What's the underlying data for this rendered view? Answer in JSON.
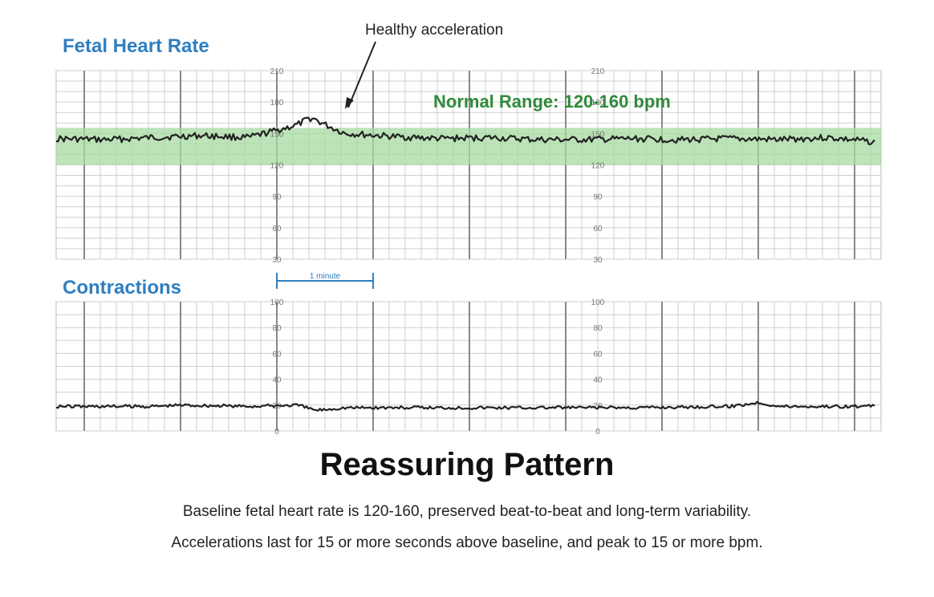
{
  "labels": {
    "fhr": "Fetal Heart Rate",
    "contractions": "Contractions",
    "annotation": "Healthy acceleration",
    "normal_range": "Normal Range: 120-160 bpm",
    "scale_bar": "1 minute"
  },
  "title": "Reassuring Pattern",
  "caption": [
    "Baseline fetal heart rate is 120-160, preserved beat-to-beat and long-term variability.",
    "Accelerations last for 15 or more seconds above baseline, and peak to 15 or more bpm."
  ],
  "colors": {
    "label_blue": "#2f7fc0",
    "band_green": "#a7d9a0",
    "range_text": "#2f8a3a",
    "trace": "#222222",
    "grid": "#c8c8c8"
  },
  "chart_data": [
    {
      "type": "line",
      "title": "Fetal Heart Rate",
      "y_unit": "bpm",
      "ylim": [
        30,
        210
      ],
      "y_ticks": [
        210,
        180,
        150,
        120,
        90,
        60,
        30
      ],
      "normal_band": [
        120,
        160
      ],
      "x_unit": "minutes",
      "x": [
        0,
        0.5,
        1,
        1.5,
        2,
        2.25,
        2.5,
        2.65,
        2.8,
        3,
        3.5,
        4,
        4.5,
        5,
        5.5,
        6,
        6.5,
        7,
        7.5,
        8,
        8.5
      ],
      "values": [
        145,
        144,
        146,
        148,
        146,
        152,
        158,
        165,
        158,
        150,
        147,
        145,
        146,
        144,
        144,
        145,
        144,
        145,
        144,
        146,
        142
      ],
      "annotation": {
        "text": "Healthy acceleration",
        "x": 2.65,
        "y": 165
      }
    },
    {
      "type": "line",
      "title": "Contractions",
      "y_unit": "mmHg",
      "ylim": [
        0,
        100
      ],
      "y_ticks": [
        100,
        80,
        60,
        40,
        20,
        0
      ],
      "x_unit": "minutes",
      "x": [
        0,
        1,
        1.3,
        2,
        2.5,
        2.7,
        3,
        4,
        5,
        6,
        7,
        7.3,
        7.5,
        8,
        8.5
      ],
      "values": [
        19,
        19,
        20,
        19,
        20,
        16,
        18,
        18,
        18,
        18,
        19,
        22,
        19,
        19,
        19
      ]
    }
  ]
}
